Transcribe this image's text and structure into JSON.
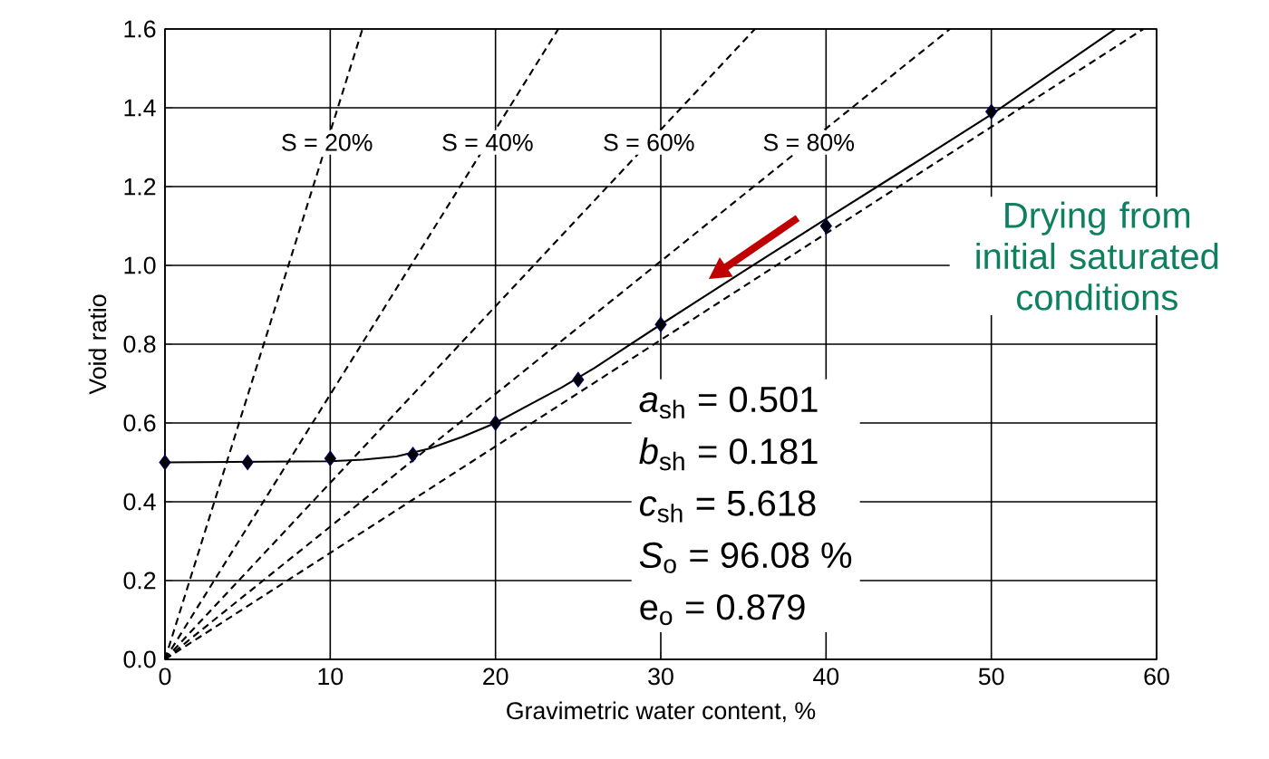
{
  "chart_data": {
    "type": "scatter",
    "xlabel": "Gravimetric water content, %",
    "ylabel": "Void ratio",
    "xlim": [
      0,
      60
    ],
    "xticks": [
      0,
      10,
      20,
      30,
      40,
      50,
      60
    ],
    "ylim": [
      0,
      1.6
    ],
    "yticks": [
      {
        "value": 0,
        "label": "0.0"
      },
      0.2,
      0.4,
      0.6,
      0.8,
      {
        "value": 1,
        "label": "1.0"
      },
      1.2,
      1.4,
      1.6
    ],
    "grid": true,
    "series": [
      {
        "name": "S = 20%",
        "type": "line",
        "line_style": "dashed",
        "marker": "none",
        "color": "#000000",
        "x": [
          0,
          11.95
        ],
        "values": [
          0,
          1.6
        ]
      },
      {
        "name": "S = 40%",
        "type": "line",
        "line_style": "dashed",
        "marker": "none",
        "color": "#000000",
        "x": [
          0,
          23.8
        ],
        "values": [
          0,
          1.6
        ]
      },
      {
        "name": "S = 60%",
        "type": "line",
        "line_style": "dashed",
        "marker": "none",
        "color": "#000000",
        "x": [
          0,
          35.7
        ],
        "values": [
          0,
          1.6
        ]
      },
      {
        "name": "S = 80%",
        "type": "line",
        "line_style": "dashed",
        "marker": "none",
        "color": "#000000",
        "x": [
          0,
          47.5
        ],
        "values": [
          0,
          1.6
        ]
      },
      {
        "type": "line",
        "line_style": "dashed",
        "marker": "none",
        "color": "#000000",
        "x": [
          0,
          59.2
        ],
        "values": [
          0,
          1.6
        ]
      },
      {
        "type": "line",
        "line_style": "solid",
        "marker": "none",
        "color": "#000000",
        "x": [
          0,
          10,
          12,
          14,
          16,
          18,
          20,
          22,
          24,
          26,
          28,
          30,
          35,
          40,
          45,
          50,
          57.5
        ],
        "values": [
          0.5,
          0.503,
          0.507,
          0.515,
          0.535,
          0.565,
          0.6,
          0.645,
          0.69,
          0.74,
          0.795,
          0.85,
          0.985,
          1.118,
          1.25,
          1.383,
          1.6
        ]
      },
      {
        "marker": "diamond",
        "color": "#000000",
        "x": [
          0,
          5,
          10,
          15,
          20,
          25,
          30,
          40,
          50
        ],
        "values": [
          0.5,
          0.5,
          0.51,
          0.52,
          0.6,
          0.71,
          0.85,
          1.1,
          1.39
        ]
      }
    ],
    "annotations": [
      "Drying from initial saturated conditions",
      "*a*$_{sh}$ = 0.501",
      "*b*$_{sh}$ = 0.181",
      "*c*$_{sh}$ = 5.618",
      "*S*$_{o}$ = 96.08 %",
      "e$_{o}$ = 0.879"
    ]
  }
}
